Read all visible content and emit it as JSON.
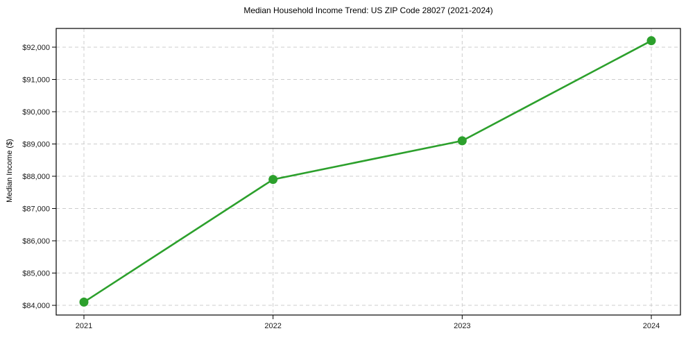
{
  "chart_data": {
    "type": "line",
    "title": "Median Household Income Trend: US ZIP Code 28027 (2021-2024)",
    "xlabel": "",
    "ylabel": "Median Income ($)",
    "x": [
      "2021",
      "2022",
      "2023",
      "2024"
    ],
    "series": [
      {
        "name": "Median Household Income",
        "values": [
          84100,
          87900,
          89100,
          92200
        ],
        "color": "#2ca02c",
        "marker": "circle"
      }
    ],
    "yticks": [
      84000,
      85000,
      86000,
      87000,
      88000,
      89000,
      90000,
      91000,
      92000
    ],
    "ytick_prefix": "$",
    "ylim": [
      83700,
      92580
    ],
    "grid": "both-dashed",
    "legend_position": "none",
    "colors": {
      "line": "#2ca02c",
      "grid": "#cccccc",
      "spine": "#000000",
      "text": "#1a1a1a",
      "background": "#ffffff"
    }
  }
}
